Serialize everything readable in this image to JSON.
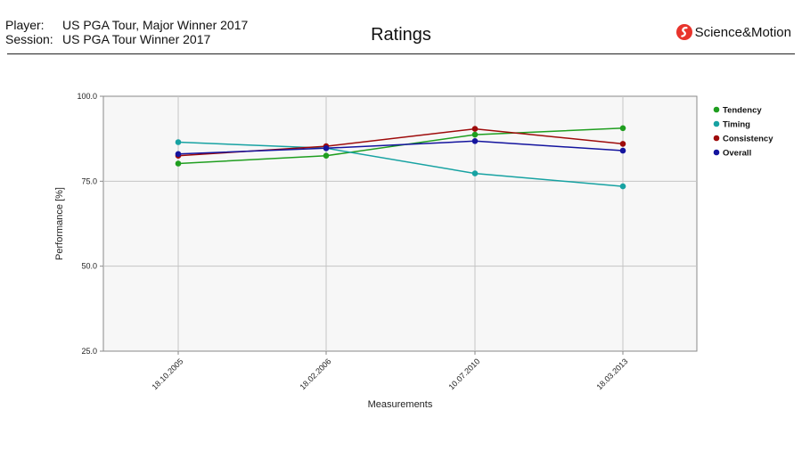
{
  "header": {
    "player_label": "Player:",
    "player_value": "US PGA Tour, Major Winner 2017",
    "session_label": "Session:",
    "session_value": "US PGA Tour Winner 2017",
    "title": "Ratings",
    "logo_text": "Science&Motion",
    "logo_color": "#e8342c"
  },
  "chart_data": {
    "type": "line",
    "categories": [
      "18.10.2005",
      "18.02.2006",
      "10.07.2010",
      "18.03.2013"
    ],
    "series": [
      {
        "name": "Tendency",
        "color": "#1f9e1f",
        "values": [
          80.2,
          82.5,
          88.7,
          90.6
        ]
      },
      {
        "name": "Timing",
        "color": "#17a2a2",
        "values": [
          86.5,
          84.7,
          77.3,
          73.5
        ]
      },
      {
        "name": "Consistency",
        "color": "#9e0b0b",
        "values": [
          82.5,
          85.3,
          90.4,
          86.0
        ]
      },
      {
        "name": "Overall",
        "color": "#14149e",
        "values": [
          83.0,
          84.7,
          86.8,
          84.0
        ]
      }
    ],
    "xlabel": "Measurements",
    "ylabel": "Performance [%]",
    "ylim": [
      25,
      100
    ],
    "yticks": [
      "25.0",
      "50.0",
      "75.0",
      "100.0"
    ],
    "grid": true,
    "legend": "right"
  }
}
